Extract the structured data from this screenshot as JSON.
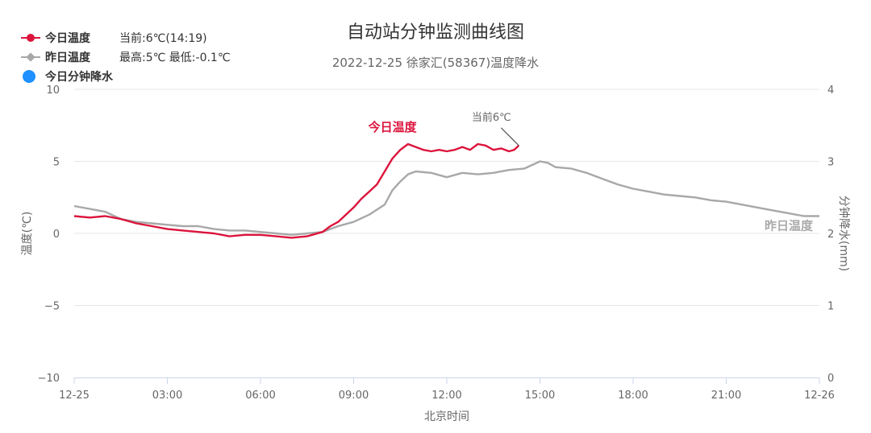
{
  "title": "自动站分钟监测曲线图",
  "subtitle": "2022-12-25 徐家汇(58367)温度降水",
  "legend": [
    {
      "label": "今日温度",
      "info": "当前:6℃(14:19)",
      "color": "#dc143c",
      "marker": "dot"
    },
    {
      "label": "昨日温度",
      "info": "最高:5℃ 最低:-0.1℃",
      "color": "#a8a8a8",
      "marker": "diamond"
    },
    {
      "label": "今日分钟降水",
      "info": "",
      "color": "#1e90ff",
      "marker": "bigdot"
    }
  ],
  "chart_data": {
    "type": "line",
    "title": "自动站分钟监测曲线图",
    "subtitle": "2022-12-25 徐家汇(58367)温度降水",
    "xlabel": "北京时间",
    "ylabel": "温度(℃)",
    "y2label": "分钟降水(mm)",
    "x_unit": "hours since 00:00",
    "xlim": [
      0,
      24
    ],
    "ylim": [
      -10,
      10
    ],
    "y2lim": [
      0,
      4
    ],
    "x_ticks": [
      0,
      3,
      6,
      9,
      12,
      15,
      18,
      21,
      24
    ],
    "x_tick_labels": [
      "12-25",
      "03:00",
      "06:00",
      "09:00",
      "12:00",
      "15:00",
      "18:00",
      "21:00",
      "12-26"
    ],
    "y_ticks": [
      -10,
      -5,
      0,
      5,
      10
    ],
    "y2_ticks": [
      0,
      1,
      2,
      3,
      4
    ],
    "grid": true,
    "annotations": {
      "current_label": "当前6℃",
      "today_label": "今日温度",
      "yesterday_label": "昨日温度"
    },
    "series": [
      {
        "name": "今日温度",
        "color": "#dc143c",
        "x": [
          0,
          0.5,
          1,
          1.5,
          2,
          2.5,
          3,
          3.5,
          4,
          4.5,
          5,
          5.5,
          6,
          6.5,
          7,
          7.5,
          8,
          8.25,
          8.5,
          8.75,
          9,
          9.25,
          9.5,
          9.75,
          10,
          10.25,
          10.5,
          10.75,
          11,
          11.25,
          11.5,
          11.75,
          12,
          12.25,
          12.5,
          12.75,
          13,
          13.25,
          13.5,
          13.75,
          14,
          14.17,
          14.32
        ],
        "y": [
          1.2,
          1.1,
          1.2,
          1.0,
          0.7,
          0.5,
          0.3,
          0.2,
          0.1,
          0.0,
          -0.2,
          -0.1,
          -0.1,
          -0.2,
          -0.3,
          -0.2,
          0.1,
          0.5,
          0.8,
          1.3,
          1.8,
          2.4,
          2.9,
          3.4,
          4.3,
          5.2,
          5.8,
          6.2,
          6.0,
          5.8,
          5.7,
          5.8,
          5.7,
          5.8,
          6.0,
          5.8,
          6.2,
          6.1,
          5.8,
          5.9,
          5.7,
          5.8,
          6.1
        ]
      },
      {
        "name": "昨日温度",
        "color": "#a8a8a8",
        "x": [
          0,
          0.5,
          1,
          1.5,
          2,
          2.5,
          3,
          3.5,
          4,
          4.5,
          5,
          5.5,
          6,
          6.5,
          7,
          7.5,
          8,
          8.5,
          9,
          9.5,
          10,
          10.25,
          10.5,
          10.75,
          11,
          11.5,
          12,
          12.5,
          13,
          13.5,
          14,
          14.5,
          15,
          15.25,
          15.5,
          16,
          16.5,
          17,
          17.5,
          18,
          18.5,
          19,
          19.5,
          20,
          20.5,
          21,
          21.5,
          22,
          22.5,
          23,
          23.5,
          24
        ],
        "y": [
          1.9,
          1.7,
          1.5,
          1.0,
          0.8,
          0.7,
          0.6,
          0.5,
          0.5,
          0.3,
          0.2,
          0.2,
          0.1,
          0.0,
          -0.1,
          0.0,
          0.1,
          0.5,
          0.8,
          1.3,
          2.0,
          3.0,
          3.6,
          4.1,
          4.3,
          4.2,
          3.9,
          4.2,
          4.1,
          4.2,
          4.4,
          4.5,
          5.0,
          4.9,
          4.6,
          4.5,
          4.2,
          3.8,
          3.4,
          3.1,
          2.9,
          2.7,
          2.6,
          2.5,
          2.3,
          2.2,
          2.0,
          1.8,
          1.6,
          1.4,
          1.2,
          1.2
        ]
      }
    ]
  }
}
